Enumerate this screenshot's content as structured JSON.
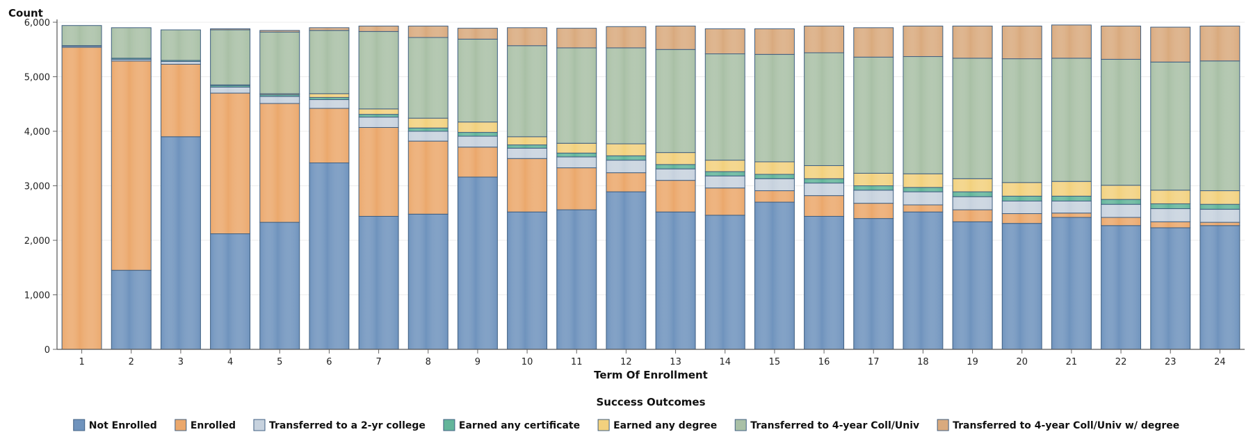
{
  "chart_data": {
    "type": "bar",
    "stacked": true,
    "ylabel": "Count",
    "xlabel": "Term Of Enrollment",
    "legend_title": "Success Outcomes",
    "legend_position": "bottom",
    "ylim": [
      0,
      6000
    ],
    "yticks": [
      0,
      1000,
      2000,
      3000,
      4000,
      5000,
      6000
    ],
    "ytick_labels": [
      "0",
      "1,000",
      "2,000",
      "3,000",
      "4,000",
      "5,000",
      "6,000"
    ],
    "grid": true,
    "categories": [
      "1",
      "2",
      "3",
      "4",
      "5",
      "6",
      "7",
      "8",
      "9",
      "10",
      "11",
      "12",
      "13",
      "14",
      "15",
      "16",
      "17",
      "18",
      "19",
      "20",
      "21",
      "22",
      "23",
      "24"
    ],
    "series": [
      {
        "name": "Not Enrolled",
        "color": "#6f93bd",
        "values": [
          0,
          1450,
          3900,
          2120,
          2330,
          3420,
          2440,
          2480,
          3160,
          2520,
          2560,
          2890,
          2520,
          2460,
          2700,
          2440,
          2400,
          2520,
          2340,
          2310,
          2420,
          2270,
          2230,
          2270
        ]
      },
      {
        "name": "Enrolled",
        "color": "#eba86c",
        "values": [
          5540,
          3840,
          1330,
          2580,
          2180,
          1000,
          1630,
          1340,
          550,
          980,
          770,
          350,
          580,
          500,
          210,
          380,
          280,
          130,
          220,
          180,
          80,
          150,
          110,
          60
        ]
      },
      {
        "name": "Transferred to a 2-yr college",
        "color": "#c7d2de",
        "values": [
          20,
          30,
          50,
          110,
          130,
          160,
          190,
          180,
          200,
          190,
          200,
          230,
          210,
          220,
          220,
          230,
          240,
          240,
          240,
          230,
          220,
          240,
          240,
          240
        ]
      },
      {
        "name": "Earned any certificate",
        "color": "#63b59a",
        "values": [
          10,
          20,
          20,
          30,
          30,
          40,
          50,
          60,
          70,
          60,
          70,
          80,
          80,
          80,
          80,
          80,
          80,
          80,
          90,
          90,
          90,
          90,
          90,
          90
        ]
      },
      {
        "name": "Earned any degree",
        "color": "#f2d17e",
        "values": [
          0,
          0,
          0,
          10,
          20,
          70,
          100,
          180,
          190,
          150,
          180,
          220,
          220,
          210,
          230,
          240,
          230,
          250,
          240,
          250,
          270,
          260,
          250,
          250
        ]
      },
      {
        "name": "Transferred to 4-year Coll/Univ",
        "color": "#a9c0a6",
        "values": [
          370,
          560,
          560,
          1010,
          1130,
          1160,
          1420,
          1480,
          1520,
          1670,
          1750,
          1760,
          1890,
          1950,
          1970,
          2070,
          2130,
          2150,
          2210,
          2270,
          2260,
          2310,
          2350,
          2380
        ]
      },
      {
        "name": "Transferred to 4-year Coll/Univ w/ degree",
        "color": "#d9aa7e",
        "values": [
          0,
          0,
          0,
          20,
          30,
          50,
          100,
          210,
          200,
          330,
          360,
          390,
          430,
          460,
          470,
          490,
          540,
          560,
          590,
          600,
          610,
          610,
          640,
          640
        ]
      }
    ]
  }
}
